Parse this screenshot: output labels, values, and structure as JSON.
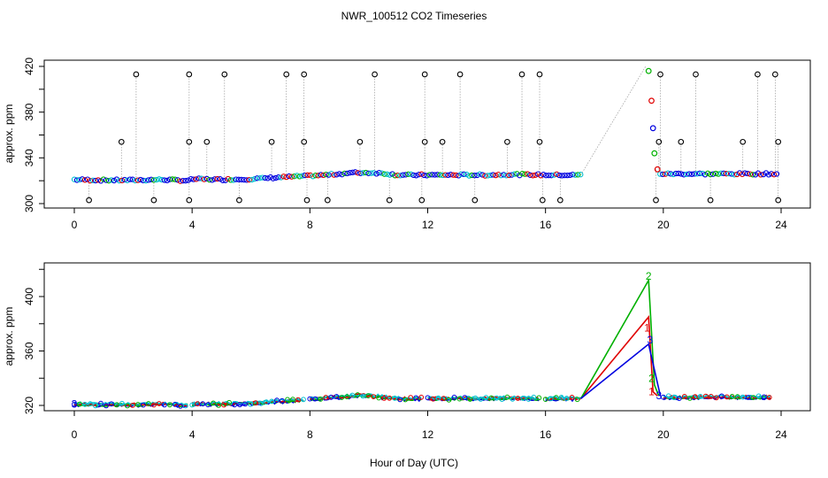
{
  "chart_data": [
    {
      "type": "scatter",
      "title": "NWR_100512  CO2 Timeseries",
      "xlabel": "",
      "ylabel": "approx. ppm",
      "xlim": [
        0,
        24
      ],
      "ylim": [
        300,
        420
      ],
      "xticks": [
        "0",
        "4",
        "8",
        "12",
        "16",
        "20",
        "24"
      ],
      "yticks": [
        "300",
        "340",
        "380",
        "420"
      ],
      "baseline": [
        [
          0,
          321
        ],
        [
          1,
          320.5
        ],
        [
          2,
          320.5
        ],
        [
          3,
          321
        ],
        [
          3.9,
          320
        ],
        [
          4,
          321.5
        ],
        [
          5,
          321
        ],
        [
          6,
          321.5
        ],
        [
          7,
          323
        ],
        [
          7.8,
          324
        ],
        [
          8.5,
          325
        ],
        [
          9.5,
          327
        ],
        [
          10,
          327
        ],
        [
          10.5,
          326.5
        ],
        [
          11,
          325
        ],
        [
          12,
          325
        ],
        [
          13,
          325
        ],
        [
          14,
          325
        ],
        [
          15,
          325.5
        ],
        [
          16,
          325
        ],
        [
          17.2,
          325
        ],
        [
          19.5,
          418
        ],
        [
          19.6,
          390
        ],
        [
          19.65,
          366
        ],
        [
          19.7,
          344
        ],
        [
          19.75,
          330
        ],
        [
          19.9,
          326
        ],
        [
          20,
          326
        ],
        [
          21,
          326
        ],
        [
          22,
          326
        ],
        [
          23,
          326
        ],
        [
          23.8,
          326
        ]
      ],
      "outliers_high": [
        2.1,
        3.9,
        5.1,
        7.2,
        7.8,
        10.2,
        11.9,
        13.1,
        15.2,
        15.8,
        19.9,
        21.1,
        23.2,
        23.8
      ],
      "outliers_mid": [
        1.6,
        3.9,
        4.5,
        6.7,
        7.8,
        9.7,
        11.9,
        12.5,
        14.7,
        15.8,
        19.85,
        20.6,
        22.7,
        23.9
      ],
      "outliers_low": [
        0.5,
        2.7,
        3.9,
        5.6,
        7.9,
        8.6,
        10.7,
        11.8,
        13.6,
        15.9,
        16.5,
        19.75,
        21.6,
        23.9
      ],
      "outlier_values": {
        "high": 413,
        "mid": 354,
        "low": 303
      },
      "spike_markers": [
        {
          "x": 19.5,
          "y": 416,
          "color": "#00b000"
        },
        {
          "x": 19.6,
          "y": 390,
          "color": "#e00000"
        },
        {
          "x": 19.65,
          "y": 366,
          "color": "#0000e0"
        },
        {
          "x": 19.7,
          "y": 344,
          "color": "#00b000"
        },
        {
          "x": 19.8,
          "y": 330,
          "color": "#e00000"
        }
      ],
      "series_colors": [
        "#000000",
        "#e00000",
        "#00b000",
        "#0000e0",
        "#00c0d0"
      ]
    },
    {
      "type": "line",
      "title": "",
      "xlabel": "Hour of Day (UTC)",
      "ylabel": "approx. ppm",
      "xlim": [
        0,
        24
      ],
      "ylim": [
        320,
        420
      ],
      "xticks": [
        "0",
        "4",
        "8",
        "12",
        "16",
        "20",
        "24"
      ],
      "yticks": [
        "320",
        "360",
        "400"
      ],
      "segments": [
        [
          0,
          3.9
        ],
        [
          4.0,
          7.8
        ],
        [
          8.0,
          11.8
        ],
        [
          12.0,
          15.8
        ],
        [
          16.0,
          17.2
        ],
        [
          20.0,
          23.7
        ]
      ],
      "series": [
        {
          "name": "1",
          "color": "#e00000",
          "spike": [
            [
              17.2,
              325
            ],
            [
              19.5,
              385
            ],
            [
              19.65,
              330
            ],
            [
              19.8,
              327
            ]
          ],
          "markers": [
            [
              19.45,
              377
            ],
            [
              19.6,
              330
            ]
          ]
        },
        {
          "name": "2",
          "color": "#00b000",
          "spike": [
            [
              17.2,
              325
            ],
            [
              19.5,
              412
            ],
            [
              19.7,
              335
            ],
            [
              19.85,
              327
            ]
          ],
          "markers": [
            [
              19.5,
              415
            ],
            [
              19.6,
              340
            ]
          ]
        },
        {
          "name": "3",
          "color": "#0000e0",
          "spike": [
            [
              17.2,
              325
            ],
            [
              19.5,
              365
            ],
            [
              19.9,
              327
            ]
          ],
          "markers": [
            [
              19.55,
              368
            ],
            [
              19.85,
              327
            ]
          ]
        }
      ],
      "baseline": [
        [
          0,
          321
        ],
        [
          1,
          320.5
        ],
        [
          2,
          320.5
        ],
        [
          3,
          321
        ],
        [
          3.9,
          320
        ],
        [
          4,
          321
        ],
        [
          5,
          321
        ],
        [
          6,
          321.5
        ],
        [
          7,
          323
        ],
        [
          7.8,
          324
        ],
        [
          8,
          325
        ],
        [
          9,
          326
        ],
        [
          9.8,
          327.5
        ],
        [
          10.5,
          326
        ],
        [
          11,
          325
        ],
        [
          11.8,
          325
        ],
        [
          12,
          325
        ],
        [
          13,
          325
        ],
        [
          14,
          325
        ],
        [
          15,
          325.5
        ],
        [
          15.8,
          325
        ],
        [
          16,
          325
        ],
        [
          17.2,
          325
        ],
        [
          20,
          326
        ],
        [
          21,
          326
        ],
        [
          22,
          326
        ],
        [
          23,
          326
        ],
        [
          23.7,
          326
        ]
      ]
    }
  ]
}
